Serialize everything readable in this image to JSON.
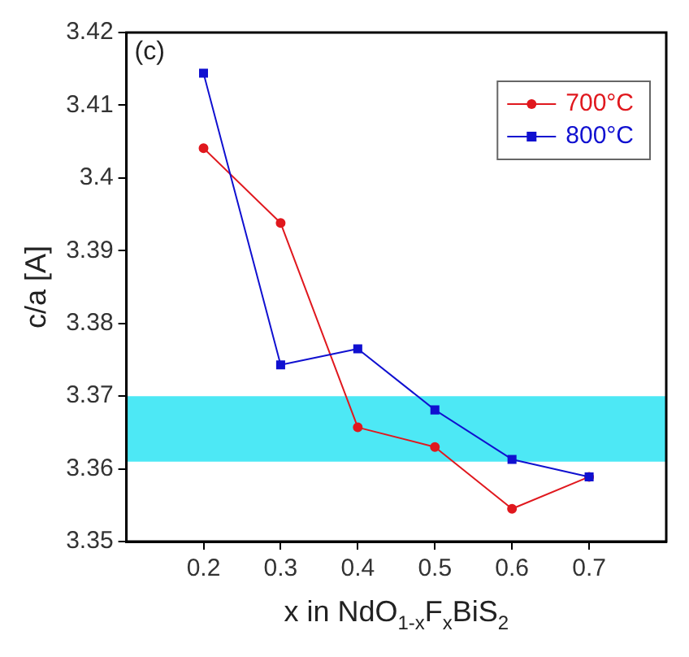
{
  "chart_data": {
    "type": "line",
    "xlabel": "x in NdO$_{1-x}$F$_{x}$BiS$_{2}$",
    "ylabel": "c/a [A]",
    "x": [
      0.2,
      0.3,
      0.4,
      0.5,
      0.6,
      0.7
    ],
    "series": [
      {
        "name": "700°C",
        "color": "#e0181e",
        "marker": "circle",
        "values": [
          3.4041,
          3.3938,
          3.3657,
          3.363,
          3.3545,
          3.3589
        ]
      },
      {
        "name": "800°C",
        "color": "#1010d0",
        "marker": "square",
        "values": [
          3.4144,
          3.3743,
          3.3765,
          3.3681,
          3.3613,
          3.3589
        ]
      }
    ],
    "xlim": [
      0.1,
      0.8
    ],
    "xticks": [
      0.2,
      0.3,
      0.4,
      0.5,
      0.6,
      0.7
    ],
    "ylim": [
      3.35,
      3.42
    ],
    "yticks": [
      3.35,
      3.36,
      3.37,
      3.38,
      3.39,
      3.4,
      3.41,
      3.42
    ],
    "bands": [
      {
        "axis": "y",
        "from": 3.361,
        "to": 3.37,
        "color": "#4de8f5"
      }
    ],
    "annotations": [
      "(c)"
    ],
    "legend": "top right",
    "grid": false,
    "line_style": "solid"
  }
}
